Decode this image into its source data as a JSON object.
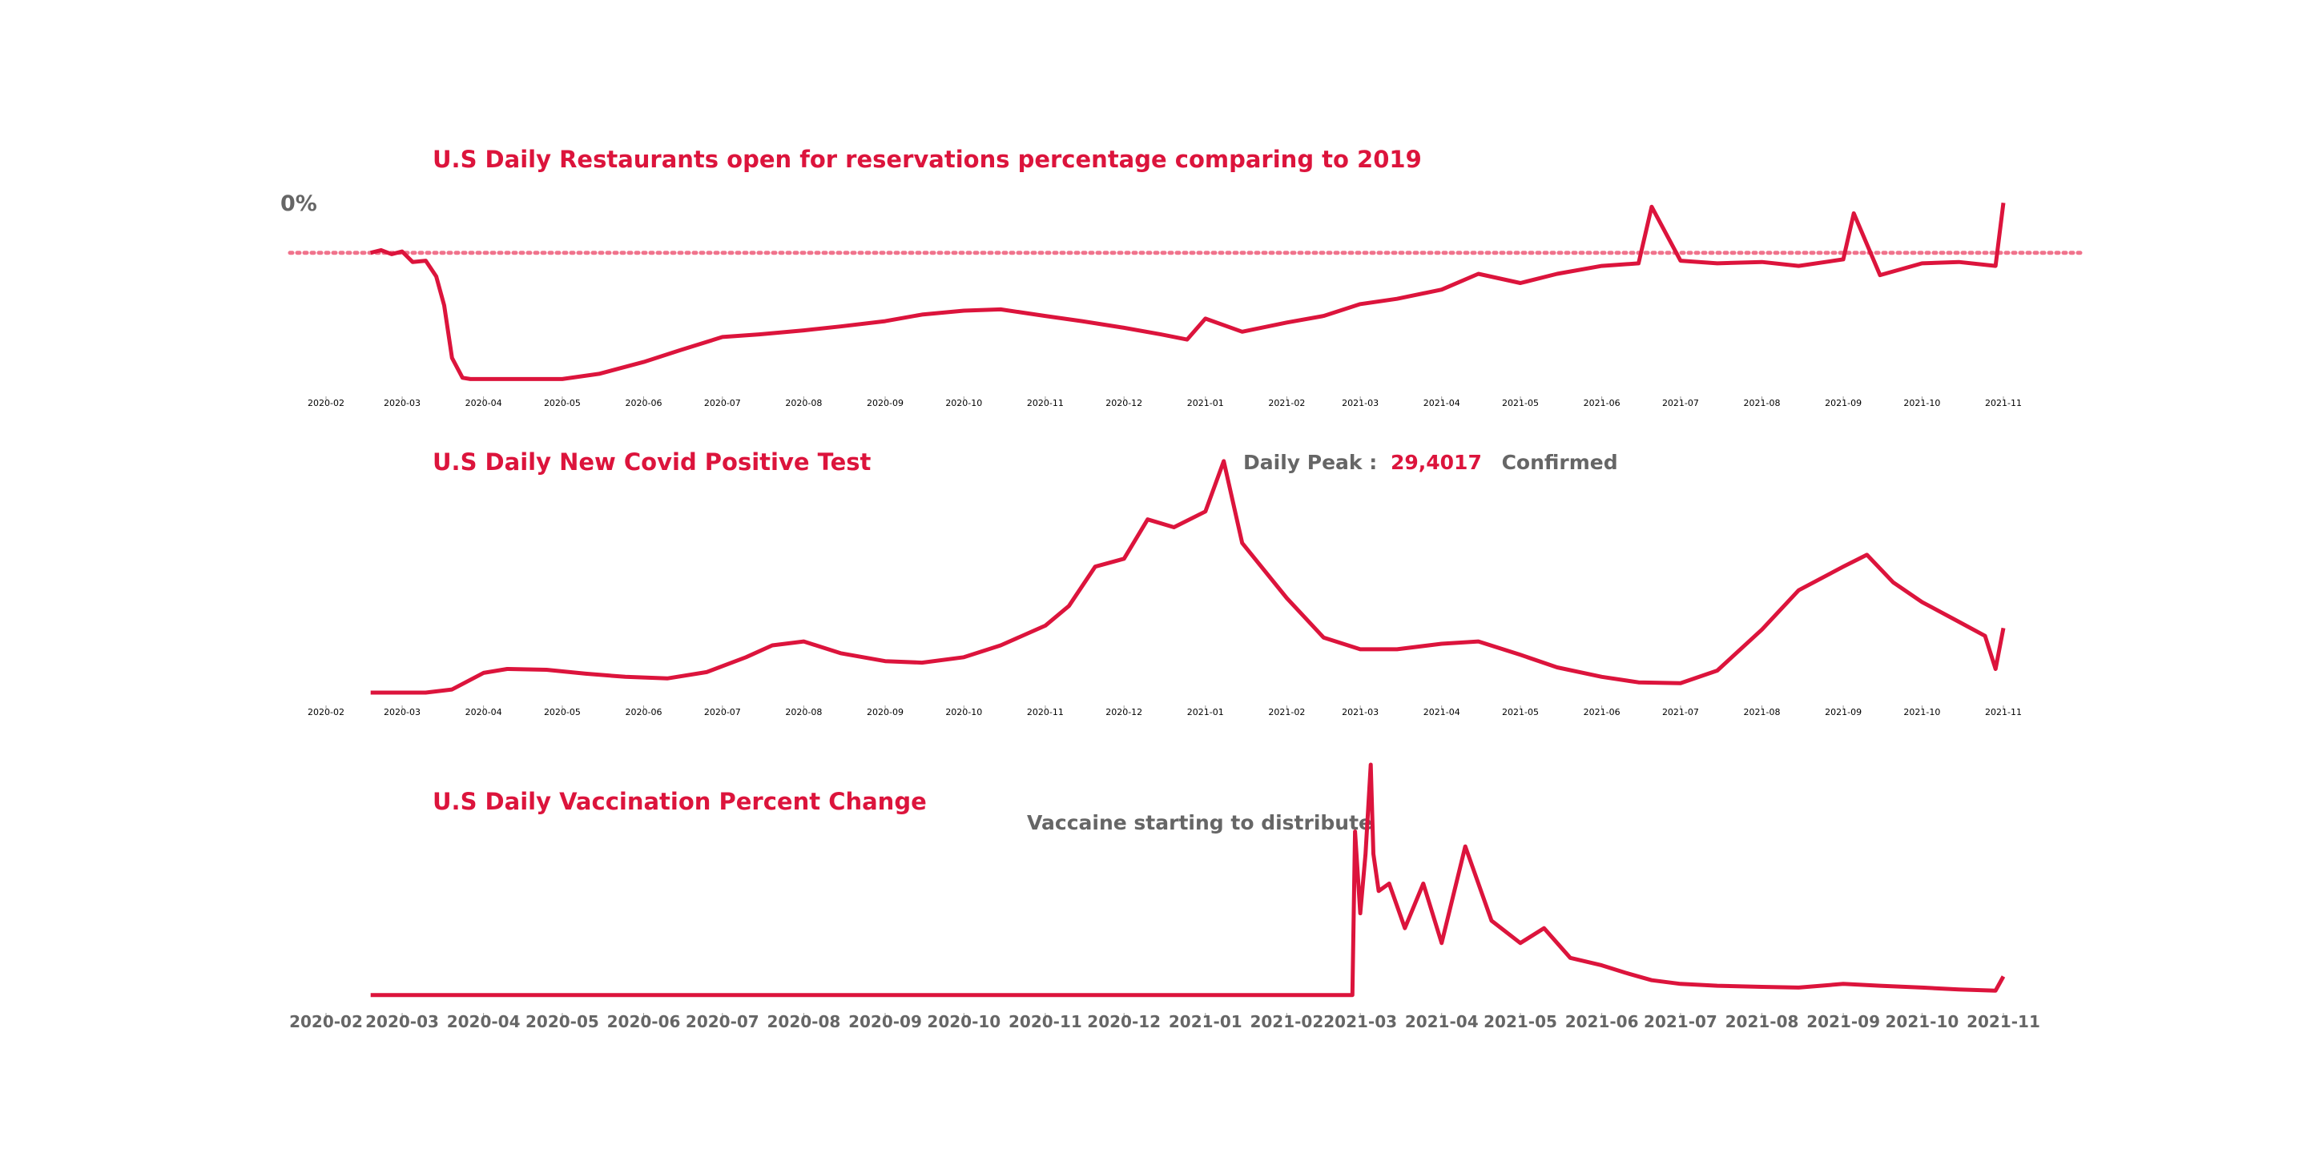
{
  "colors": {
    "accent": "#dc143c",
    "note_gray": "#666666",
    "reference_line": "#f0738c"
  },
  "chart_data": [
    {
      "type": "line",
      "title": "U.S Daily Restaurants open for reservations percentage comparing to 2019",
      "reference_line": {
        "value": 0,
        "label": "0%",
        "style": "dotted"
      },
      "x_ticks": [
        "2020-02",
        "2020-03",
        "2020-04",
        "2020-05",
        "2020-06",
        "2020-07",
        "2020-08",
        "2020-09",
        "2020-10",
        "2020-11",
        "2020-12",
        "2021-01",
        "2021-02",
        "2021-03",
        "2021-04",
        "2021-05",
        "2021-06",
        "2021-07",
        "2021-08",
        "2021-09",
        "2021-10",
        "2021-11"
      ],
      "ylim": [
        -100,
        40
      ],
      "grid": false,
      "series": [
        {
          "color": "#dc143c",
          "x": [
            "2020-02-18",
            "2020-02-22",
            "2020-02-26",
            "2020-03-01",
            "2020-03-05",
            "2020-03-10",
            "2020-03-14",
            "2020-03-17",
            "2020-03-20",
            "2020-03-24",
            "2020-03-27",
            "2020-04-01",
            "2020-04-15",
            "2020-05-01",
            "2020-05-15",
            "2020-06-01",
            "2020-06-15",
            "2020-07-01",
            "2020-07-15",
            "2020-08-01",
            "2020-08-15",
            "2020-09-01",
            "2020-09-15",
            "2020-10-01",
            "2020-10-15",
            "2020-11-01",
            "2020-11-15",
            "2020-12-01",
            "2020-12-15",
            "2020-12-25",
            "2021-01-01",
            "2021-01-15",
            "2021-02-01",
            "2021-02-15",
            "2021-03-01",
            "2021-03-15",
            "2021-04-01",
            "2021-04-15",
            "2021-05-01",
            "2021-05-15",
            "2021-06-01",
            "2021-06-15",
            "2021-06-20",
            "2021-07-01",
            "2021-07-15",
            "2021-08-01",
            "2021-08-15",
            "2021-09-01",
            "2021-09-05",
            "2021-09-15",
            "2021-10-01",
            "2021-10-15",
            "2021-10-29",
            "2021-11-01"
          ],
          "values": [
            0,
            2,
            -1,
            1,
            -7,
            -6,
            -18,
            -40,
            -80,
            -95,
            -96,
            -96,
            -96,
            -96,
            -92,
            -83,
            -74,
            -64,
            -62,
            -59,
            -56,
            -52,
            -47,
            -44,
            -43,
            -48,
            -52,
            -57,
            -62,
            -66,
            -50,
            -60,
            -53,
            -48,
            -39,
            -35,
            -28,
            -16,
            -23,
            -16,
            -10,
            -8,
            35,
            -6,
            -8,
            -7,
            -10,
            -5,
            30,
            -17,
            -8,
            -7,
            -10,
            38
          ]
        }
      ]
    },
    {
      "type": "line",
      "title": "U.S Daily New Covid Positive Test",
      "annotation": {
        "prefix": "Daily Peak :",
        "value": "29,4017",
        "suffix": "Confirmed"
      },
      "x_ticks": [
        "2020-02",
        "2020-03",
        "2020-04",
        "2020-05",
        "2020-06",
        "2020-07",
        "2020-08",
        "2020-09",
        "2020-10",
        "2020-11",
        "2020-12",
        "2021-01",
        "2021-02",
        "2021-03",
        "2021-04",
        "2021-05",
        "2021-06",
        "2021-07",
        "2021-08",
        "2021-09",
        "2021-10",
        "2021-11"
      ],
      "ylim": [
        0,
        300000
      ],
      "grid": false,
      "series": [
        {
          "color": "#dc143c",
          "x": [
            "2020-02-18",
            "2020-03-10",
            "2020-03-20",
            "2020-04-01",
            "2020-04-10",
            "2020-04-25",
            "2020-05-10",
            "2020-05-25",
            "2020-06-10",
            "2020-06-25",
            "2020-07-10",
            "2020-07-20",
            "2020-08-01",
            "2020-08-15",
            "2020-09-01",
            "2020-09-15",
            "2020-10-01",
            "2020-10-15",
            "2020-11-01",
            "2020-11-10",
            "2020-11-20",
            "2020-12-01",
            "2020-12-10",
            "2020-12-20",
            "2021-01-01",
            "2021-01-08",
            "2021-01-15",
            "2021-02-01",
            "2021-02-15",
            "2021-03-01",
            "2021-03-15",
            "2021-04-01",
            "2021-04-15",
            "2021-05-01",
            "2021-05-15",
            "2021-06-01",
            "2021-06-15",
            "2021-07-01",
            "2021-07-15",
            "2021-08-01",
            "2021-08-15",
            "2021-09-01",
            "2021-09-10",
            "2021-09-20",
            "2021-10-01",
            "2021-10-15",
            "2021-10-25",
            "2021-10-29",
            "2021-11-01"
          ],
          "values": [
            0,
            0,
            4000,
            25000,
            30000,
            29000,
            24000,
            20000,
            18000,
            26000,
            45000,
            60000,
            65000,
            50000,
            40000,
            38000,
            45000,
            60000,
            85000,
            110000,
            160000,
            170000,
            220000,
            210000,
            230000,
            294017,
            190000,
            120000,
            70000,
            55000,
            55000,
            62000,
            65000,
            48000,
            32000,
            20000,
            13000,
            12000,
            28000,
            80000,
            130000,
            160000,
            175000,
            140000,
            115000,
            90000,
            72000,
            30000,
            82000
          ]
        }
      ]
    },
    {
      "type": "line",
      "title": "U.S Daily Vaccination Percent Change",
      "annotation": "Vaccaine starting to distribute",
      "x_ticks": [
        "2020-02",
        "2020-03",
        "2020-04",
        "2020-05",
        "2020-06",
        "2020-07",
        "2020-08",
        "2020-09",
        "2020-10",
        "2020-11",
        "2020-12",
        "2021-01",
        "2021-02",
        "2021-03",
        "2021-04",
        "2021-05",
        "2021-06",
        "2021-07",
        "2021-08",
        "2021-09",
        "2021-10",
        "2021-11"
      ],
      "ylim": [
        -2,
        62
      ],
      "grid": false,
      "series": [
        {
          "color": "#dc143c",
          "x": [
            "2020-02-18",
            "2021-02-26",
            "2021-02-27",
            "2021-03-01",
            "2021-03-03",
            "2021-03-05",
            "2021-03-06",
            "2021-03-08",
            "2021-03-12",
            "2021-03-18",
            "2021-03-25",
            "2021-04-01",
            "2021-04-10",
            "2021-04-20",
            "2021-05-01",
            "2021-05-10",
            "2021-05-20",
            "2021-06-01",
            "2021-06-10",
            "2021-06-20",
            "2021-07-01",
            "2021-07-15",
            "2021-08-01",
            "2021-08-15",
            "2021-09-01",
            "2021-09-15",
            "2021-10-01",
            "2021-10-15",
            "2021-10-29",
            "2021-11-01"
          ],
          "values": [
            0,
            0,
            44,
            22,
            38,
            62,
            38,
            28,
            30,
            18,
            30,
            14,
            40,
            20,
            14,
            18,
            10,
            8,
            6,
            4,
            3,
            2.5,
            2.2,
            2,
            3,
            2.5,
            2,
            1.5,
            1.2,
            5
          ]
        }
      ]
    }
  ]
}
